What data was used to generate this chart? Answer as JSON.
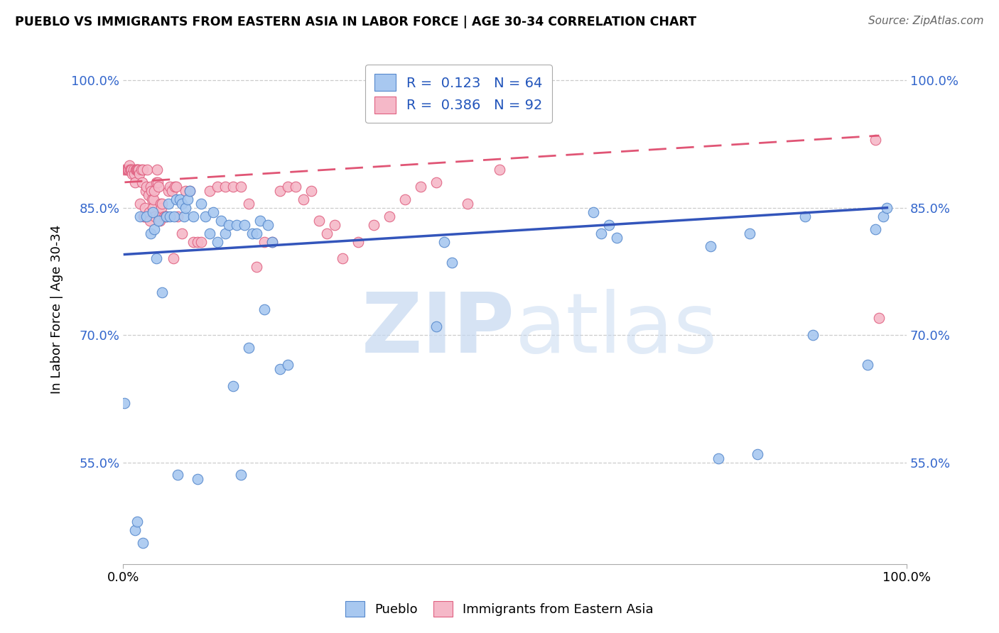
{
  "title": "PUEBLO VS IMMIGRANTS FROM EASTERN ASIA IN LABOR FORCE | AGE 30-34 CORRELATION CHART",
  "source": "Source: ZipAtlas.com",
  "ylabel": "In Labor Force | Age 30-34",
  "xlim": [
    0.0,
    1.0
  ],
  "ylim": [
    0.43,
    1.03
  ],
  "x_ticks": [
    0.0,
    1.0
  ],
  "x_tick_labels": [
    "0.0%",
    "100.0%"
  ],
  "y_ticks": [
    0.55,
    0.7,
    0.85,
    1.0
  ],
  "y_tick_labels": [
    "55.0%",
    "70.0%",
    "85.0%",
    "100.0%"
  ],
  "blue_color": "#a8c8f0",
  "blue_edge_color": "#5588cc",
  "pink_color": "#f5b8c8",
  "pink_edge_color": "#e06080",
  "blue_line_color": "#3355bb",
  "pink_line_color": "#e05575",
  "watermark_color": "#c5d8f0",
  "legend_label1": "R =  0.123   N = 64",
  "legend_label2": "R =  0.386   N = 92",
  "legend_text_color": "#2255bb",
  "ytick_color": "#3366cc",
  "blue_x": [
    0.002,
    0.015,
    0.018,
    0.022,
    0.025,
    0.03,
    0.035,
    0.038,
    0.04,
    0.042,
    0.045,
    0.05,
    0.055,
    0.058,
    0.06,
    0.065,
    0.068,
    0.07,
    0.072,
    0.075,
    0.078,
    0.08,
    0.082,
    0.085,
    0.09,
    0.095,
    0.1,
    0.105,
    0.11,
    0.115,
    0.12,
    0.125,
    0.13,
    0.135,
    0.14,
    0.145,
    0.15,
    0.155,
    0.16,
    0.165,
    0.17,
    0.175,
    0.18,
    0.185,
    0.19,
    0.2,
    0.21,
    0.4,
    0.41,
    0.42,
    0.6,
    0.61,
    0.62,
    0.63,
    0.75,
    0.76,
    0.8,
    0.81,
    0.87,
    0.88,
    0.95,
    0.96,
    0.97,
    0.975
  ],
  "blue_y": [
    0.62,
    0.47,
    0.48,
    0.84,
    0.455,
    0.84,
    0.82,
    0.845,
    0.825,
    0.79,
    0.835,
    0.75,
    0.84,
    0.855,
    0.84,
    0.84,
    0.86,
    0.535,
    0.86,
    0.855,
    0.84,
    0.85,
    0.86,
    0.87,
    0.84,
    0.53,
    0.855,
    0.84,
    0.82,
    0.845,
    0.81,
    0.835,
    0.82,
    0.83,
    0.64,
    0.83,
    0.535,
    0.83,
    0.685,
    0.82,
    0.82,
    0.835,
    0.73,
    0.83,
    0.81,
    0.66,
    0.665,
    0.71,
    0.81,
    0.785,
    0.845,
    0.82,
    0.83,
    0.815,
    0.805,
    0.555,
    0.82,
    0.56,
    0.84,
    0.7,
    0.665,
    0.825,
    0.84,
    0.85
  ],
  "pink_x": [
    0.002,
    0.004,
    0.005,
    0.006,
    0.007,
    0.008,
    0.009,
    0.01,
    0.011,
    0.012,
    0.013,
    0.014,
    0.015,
    0.016,
    0.017,
    0.018,
    0.019,
    0.02,
    0.021,
    0.022,
    0.023,
    0.024,
    0.025,
    0.026,
    0.027,
    0.028,
    0.029,
    0.03,
    0.031,
    0.032,
    0.033,
    0.034,
    0.035,
    0.036,
    0.037,
    0.038,
    0.039,
    0.04,
    0.041,
    0.042,
    0.043,
    0.044,
    0.045,
    0.046,
    0.047,
    0.048,
    0.049,
    0.05,
    0.052,
    0.054,
    0.056,
    0.058,
    0.06,
    0.062,
    0.064,
    0.066,
    0.068,
    0.07,
    0.075,
    0.08,
    0.085,
    0.09,
    0.095,
    0.1,
    0.11,
    0.12,
    0.13,
    0.14,
    0.15,
    0.16,
    0.17,
    0.18,
    0.19,
    0.2,
    0.21,
    0.22,
    0.23,
    0.24,
    0.25,
    0.26,
    0.27,
    0.28,
    0.3,
    0.32,
    0.34,
    0.36,
    0.38,
    0.4,
    0.44,
    0.48,
    0.96,
    0.965
  ],
  "pink_y": [
    0.895,
    0.895,
    0.895,
    0.895,
    0.895,
    0.9,
    0.895,
    0.895,
    0.895,
    0.89,
    0.895,
    0.89,
    0.88,
    0.895,
    0.895,
    0.895,
    0.895,
    0.895,
    0.89,
    0.855,
    0.895,
    0.88,
    0.895,
    0.84,
    0.84,
    0.85,
    0.87,
    0.875,
    0.895,
    0.865,
    0.845,
    0.835,
    0.875,
    0.87,
    0.86,
    0.85,
    0.86,
    0.87,
    0.84,
    0.88,
    0.895,
    0.88,
    0.875,
    0.84,
    0.835,
    0.855,
    0.85,
    0.855,
    0.84,
    0.84,
    0.84,
    0.87,
    0.875,
    0.87,
    0.79,
    0.875,
    0.875,
    0.84,
    0.82,
    0.87,
    0.87,
    0.81,
    0.81,
    0.81,
    0.87,
    0.875,
    0.875,
    0.875,
    0.875,
    0.855,
    0.78,
    0.81,
    0.81,
    0.87,
    0.875,
    0.875,
    0.86,
    0.87,
    0.835,
    0.82,
    0.83,
    0.79,
    0.81,
    0.83,
    0.84,
    0.86,
    0.875,
    0.88,
    0.855,
    0.895,
    0.93,
    0.72
  ],
  "blue_trend": [
    0.002,
    0.975,
    0.795,
    0.85
  ],
  "pink_trend": [
    0.002,
    0.965,
    0.88,
    0.935
  ]
}
